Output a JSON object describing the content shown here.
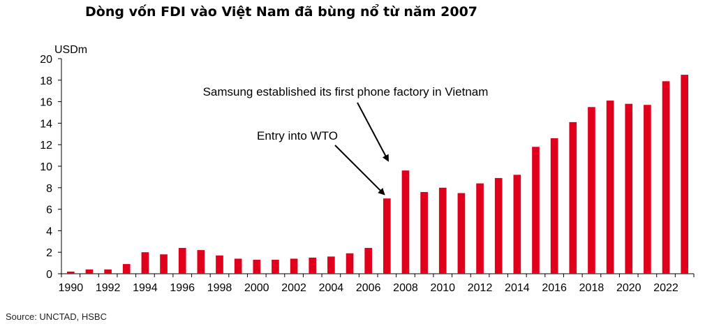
{
  "title": "Dòng vốn FDI vào Việt Nam đã bùng nổ từ năm 2007",
  "source": "Source: UNCTAD, HSBC",
  "chart_data": {
    "type": "bar",
    "title": "Dòng vốn FDI vào Việt Nam đã bùng nổ từ năm 2007",
    "xlabel": "",
    "ylabel": "USDm",
    "ylim": [
      0,
      20
    ],
    "yticks": [
      0,
      2,
      4,
      6,
      8,
      10,
      12,
      14,
      16,
      18,
      20
    ],
    "grid": false,
    "bar_color": "#e0001b",
    "categories": [
      "1990",
      "1991",
      "1992",
      "1993",
      "1994",
      "1995",
      "1996",
      "1997",
      "1998",
      "1999",
      "2000",
      "2001",
      "2002",
      "2003",
      "2004",
      "2005",
      "2006",
      "2007",
      "2008",
      "2009",
      "2010",
      "2011",
      "2012",
      "2013",
      "2014",
      "2015",
      "2016",
      "2017",
      "2018",
      "2019",
      "2020",
      "2021",
      "2022",
      "2023"
    ],
    "xtick_labels": [
      "1990",
      "1992",
      "1994",
      "1996",
      "1998",
      "2000",
      "2002",
      "2004",
      "2006",
      "2008",
      "2010",
      "2012",
      "2014",
      "2016",
      "2018",
      "2020",
      "2022"
    ],
    "values": [
      0.2,
      0.4,
      0.4,
      0.9,
      2.0,
      1.8,
      2.4,
      2.2,
      1.7,
      1.4,
      1.3,
      1.3,
      1.4,
      1.5,
      1.6,
      1.9,
      2.4,
      7.0,
      9.6,
      7.6,
      8.0,
      7.5,
      8.4,
      8.9,
      9.2,
      11.8,
      12.6,
      14.1,
      15.5,
      16.1,
      15.8,
      15.7,
      17.9,
      18.5
    ],
    "annotations": [
      {
        "text": "Entry into WTO",
        "target": "2007"
      },
      {
        "text": "Samsung established its first phone factory in Vietnam",
        "target": "2008"
      }
    ]
  }
}
